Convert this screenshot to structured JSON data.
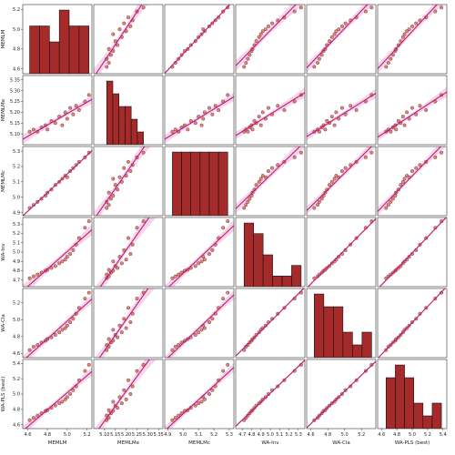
{
  "chart_data": {
    "type": "scatter",
    "layout": "pairplot",
    "variables": [
      "MEMLM",
      "MEMLMe",
      "MEMLMc",
      "WA-Inv",
      "WA-Cla",
      "WA-PLS (best)"
    ],
    "axes": [
      {
        "label": "MEMLM",
        "lim": [
          4.55,
          5.25
        ],
        "ticks": [
          4.6,
          4.8,
          5.0,
          5.2
        ],
        "tick_labels": [
          "4.6",
          "4.8",
          "5.0",
          "5.2"
        ]
      },
      {
        "label": "MEMLMe",
        "lim": [
          5.05,
          5.37
        ],
        "ticks": [
          5.1,
          5.15,
          5.2,
          5.25,
          5.3,
          5.35
        ],
        "tick_labels": [
          "5.10",
          "5.15",
          "5.20",
          "5.25",
          "5.30",
          "5.35"
        ]
      },
      {
        "label": "MEMLMc",
        "lim": [
          4.88,
          5.33
        ],
        "ticks": [
          4.9,
          5.0,
          5.1,
          5.2,
          5.3
        ],
        "tick_labels": [
          "4.9",
          "5.0",
          "5.1",
          "5.2",
          "5.3"
        ]
      },
      {
        "label": "WA-Inv",
        "lim": [
          4.63,
          5.37
        ],
        "ticks": [
          4.7,
          4.8,
          4.9,
          5.0,
          5.1,
          5.2,
          5.3
        ],
        "tick_labels": [
          "4.7",
          "4.8",
          "4.9",
          "5.0",
          "5.1",
          "5.2",
          "5.3"
        ]
      },
      {
        "label": "WA-Cla",
        "lim": [
          4.55,
          5.37
        ],
        "ticks": [
          4.6,
          4.8,
          5.0,
          5.2
        ],
        "tick_labels": [
          "4.6",
          "4.8",
          "5.0",
          "5.2"
        ]
      },
      {
        "label": "WA-PLS (best)",
        "lim": [
          4.55,
          5.45
        ],
        "ticks": [
          4.6,
          4.8,
          5.0,
          5.2,
          5.4
        ],
        "tick_labels": [
          "4.6",
          "4.8",
          "5.0",
          "5.2",
          "5.4"
        ]
      }
    ],
    "observations": [
      {
        "MEMLM": 4.62,
        "MEMLMe": 5.11,
        "MEMLMc": 4.93,
        "WA-Inv": 4.72,
        "WA-Cla": 4.64,
        "WA-PLS (best)": 4.66
      },
      {
        "MEMLM": 4.66,
        "MEMLMe": 5.12,
        "MEMLMc": 4.95,
        "WA-Inv": 4.74,
        "WA-Cla": 4.68,
        "WA-PLS (best)": 4.69
      },
      {
        "MEMLM": 4.7,
        "MEMLMe": 5.11,
        "MEMLMc": 4.97,
        "WA-Inv": 4.76,
        "WA-Cla": 4.7,
        "WA-PLS (best)": 4.72
      },
      {
        "MEMLM": 4.74,
        "MEMLMe": 5.13,
        "MEMLMc": 4.99,
        "WA-Inv": 4.78,
        "WA-Cla": 4.73,
        "WA-PLS (best)": 4.75
      },
      {
        "MEMLM": 4.78,
        "MEMLMe": 5.14,
        "MEMLMc": 5.01,
        "WA-Inv": 4.8,
        "WA-Cla": 4.75,
        "WA-PLS (best)": 4.78
      },
      {
        "MEMLM": 4.8,
        "MEMLMe": 5.12,
        "MEMLMc": 5.03,
        "WA-Inv": 4.81,
        "WA-Cla": 4.77,
        "WA-PLS (best)": 4.79
      },
      {
        "MEMLM": 4.84,
        "MEMLMe": 5.16,
        "MEMLMc": 5.05,
        "WA-Inv": 4.83,
        "WA-Cla": 4.79,
        "WA-PLS (best)": 4.82
      },
      {
        "MEMLM": 4.88,
        "MEMLMe": 5.15,
        "MEMLMc": 5.08,
        "WA-Inv": 4.85,
        "WA-Cla": 4.82,
        "WA-PLS (best)": 4.85
      },
      {
        "MEMLM": 4.92,
        "MEMLMe": 5.18,
        "MEMLMc": 5.1,
        "WA-Inv": 4.88,
        "WA-Cla": 4.85,
        "WA-PLS (best)": 4.88
      },
      {
        "MEMLM": 4.95,
        "MEMLMe": 5.14,
        "MEMLMc": 5.12,
        "WA-Inv": 4.9,
        "WA-Cla": 4.88,
        "WA-PLS (best)": 4.9
      },
      {
        "MEMLM": 4.98,
        "MEMLMe": 5.2,
        "MEMLMc": 5.14,
        "WA-Inv": 4.92,
        "WA-Cla": 4.9,
        "WA-PLS (best)": 4.93
      },
      {
        "MEMLM": 5.0,
        "MEMLMe": 5.17,
        "MEMLMc": 5.13,
        "WA-Inv": 4.95,
        "WA-Cla": 4.93,
        "WA-PLS (best)": 4.96
      },
      {
        "MEMLM": 5.03,
        "MEMLMe": 5.22,
        "MEMLMc": 5.17,
        "WA-Inv": 4.98,
        "WA-Cla": 4.97,
        "WA-PLS (best)": 5.0
      },
      {
        "MEMLM": 5.06,
        "MEMLMe": 5.19,
        "MEMLMc": 5.19,
        "WA-Inv": 5.02,
        "WA-Cla": 5.01,
        "WA-PLS (best)": 5.05
      },
      {
        "MEMLM": 5.09,
        "MEMLMe": 5.23,
        "MEMLMc": 5.21,
        "WA-Inv": 5.08,
        "WA-Cla": 5.07,
        "WA-PLS (best)": 5.1
      },
      {
        "MEMLM": 5.12,
        "MEMLMe": 5.21,
        "MEMLMc": 5.23,
        "WA-Inv": 5.15,
        "WA-Cla": 5.14,
        "WA-PLS (best)": 5.18
      },
      {
        "MEMLM": 5.18,
        "MEMLMe": 5.25,
        "MEMLMc": 5.26,
        "WA-Inv": 5.26,
        "WA-Cla": 5.25,
        "WA-PLS (best)": 5.3
      },
      {
        "MEMLM": 5.22,
        "MEMLMe": 5.28,
        "MEMLMc": 5.29,
        "WA-Inv": 5.33,
        "WA-Cla": 5.32,
        "WA-PLS (best)": 5.38
      }
    ],
    "diagonal": "histogram",
    "off_diagonal": "scatter with linear regression fit and confidence band",
    "grid": false,
    "legend": "none",
    "colors": {
      "histogram": "#a52a2a",
      "histogram_edge": "#111111",
      "point": "#c9776e",
      "point_edge": "#8b1a1a",
      "regression": "#c2187a",
      "confidence_band": "#f3c6e2"
    }
  }
}
